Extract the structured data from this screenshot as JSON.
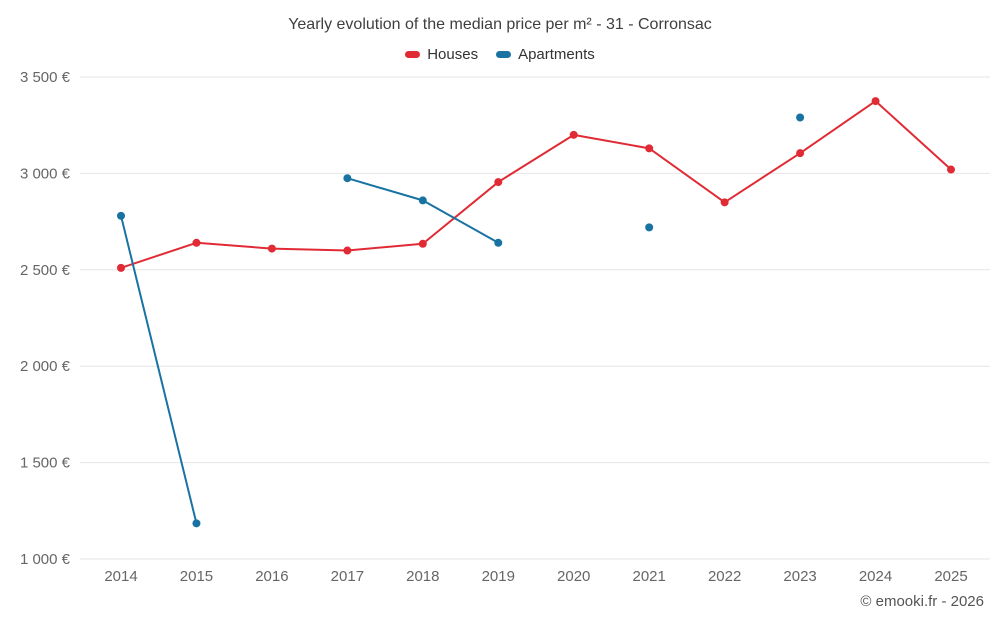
{
  "chart_data": {
    "type": "line",
    "title": "Yearly evolution of the median price per m² - 31 - Corronsac",
    "x": [
      "2014",
      "2015",
      "2016",
      "2017",
      "2018",
      "2019",
      "2020",
      "2021",
      "2022",
      "2023",
      "2024",
      "2025"
    ],
    "series": [
      {
        "name": "Houses",
        "color": "#e02b35",
        "values": [
          2510,
          2640,
          2610,
          2600,
          2635,
          2955,
          3200,
          3130,
          2850,
          3105,
          3375,
          3020
        ]
      },
      {
        "name": "Apartments",
        "color": "#1873a3",
        "values": [
          2780,
          1185,
          null,
          2975,
          2860,
          2640,
          null,
          2720,
          null,
          3290,
          null,
          null
        ]
      }
    ],
    "ylim": [
      1000,
      3500
    ],
    "ytick_values": [
      1000,
      1500,
      2000,
      2500,
      3000,
      3500
    ],
    "ytick_labels": [
      "1 000 €",
      "1 500 €",
      "2 000 €",
      "2 500 €",
      "3 000 €",
      "3 500 €"
    ],
    "grid": "horizontal",
    "legend_position": "top",
    "xlabel": "",
    "ylabel": ""
  },
  "footer": {
    "credit": "© emooki.fr - 2026"
  }
}
